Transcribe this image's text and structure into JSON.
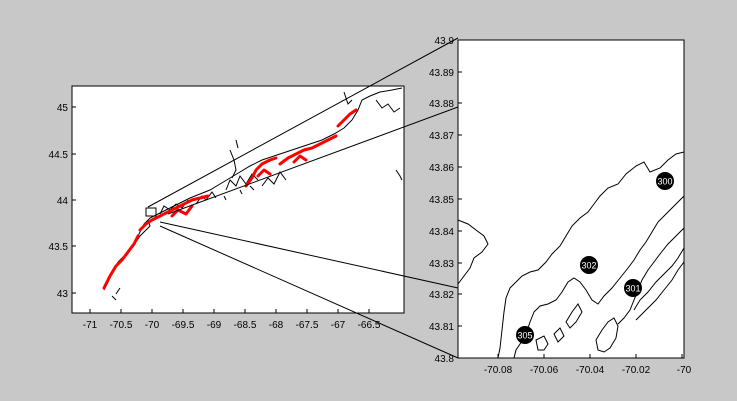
{
  "figure": {
    "background": "#c8c8c8",
    "coast_color": "#000000",
    "highlight_color": "#ff0000"
  },
  "main_map": {
    "x_ticks": [
      "-71",
      "-70.5",
      "-70",
      "-69.5",
      "-69",
      "-68.5",
      "-68",
      "-67.5",
      "-67",
      "-66.5"
    ],
    "y_ticks": [
      "45",
      "44.5",
      "44",
      "43.5",
      "43"
    ]
  },
  "inset_map": {
    "x_ticks": [
      "-70.08",
      "-70.06",
      "-70.04",
      "-70.02",
      "-70"
    ],
    "y_ticks": [
      "43.9",
      "43.89",
      "43.88",
      "43.87",
      "43.86",
      "43.85",
      "43.84",
      "43.83",
      "43.82",
      "43.81",
      "43.8"
    ],
    "stations": [
      "300",
      "301",
      "302",
      "305"
    ]
  }
}
